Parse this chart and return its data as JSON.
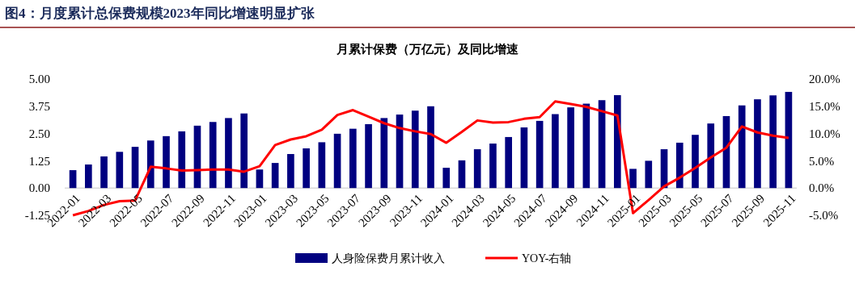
{
  "chart_data": {
    "type": "bar",
    "title": "图4：月度累计总保费规模2023年同比增速明显扩张",
    "subtitle": "月累计保费（万亿元）及同比增速",
    "categories": [
      "2022-01",
      null,
      "2022-03",
      null,
      "2022-05",
      null,
      "2022-07",
      null,
      "2022-09",
      null,
      "2022-11",
      null,
      "2023-01",
      null,
      "2023-03",
      null,
      "2023-05",
      null,
      "2023-07",
      null,
      "2023-09",
      null,
      "2023-11",
      null,
      "2024-01",
      null,
      "2024-03",
      null,
      "2024-05",
      null,
      "2024-07",
      null,
      "2024-09",
      null,
      "2024-11",
      null,
      "2025-01",
      null,
      "2025-03",
      null,
      "2025-05",
      null,
      "2025-07",
      null,
      "2025-09",
      null,
      "2025-11"
    ],
    "series": [
      {
        "name": "人身险保费月累计收入",
        "color": "#000080",
        "values": [
          0.82,
          1.08,
          1.45,
          1.66,
          1.89,
          2.18,
          2.38,
          2.6,
          2.86,
          3.03,
          3.21,
          3.42,
          0.85,
          1.15,
          1.56,
          1.82,
          2.1,
          2.49,
          2.72,
          2.93,
          3.21,
          3.37,
          3.55,
          3.75,
          0.93,
          1.27,
          1.78,
          2.04,
          2.34,
          2.78,
          3.08,
          3.39,
          3.7,
          3.87,
          4.03,
          4.26,
          0.88,
          1.25,
          1.78,
          2.08,
          2.44,
          2.96,
          3.3,
          3.79,
          4.07,
          4.25,
          4.41
        ]
      },
      {
        "name": "YOY-右轴",
        "type": "line",
        "axis": "y2",
        "color": "#ff0000",
        "values": [
          -5.0,
          -4.2,
          -3.1,
          -2.4,
          -2.3,
          3.9,
          3.6,
          3.2,
          3.3,
          3.4,
          3.4,
          3.0,
          4.0,
          7.9,
          8.9,
          9.5,
          10.7,
          13.4,
          14.3,
          13.1,
          11.9,
          11.0,
          10.4,
          9.9,
          8.3,
          10.3,
          12.4,
          12.0,
          12.1,
          12.7,
          13.0,
          15.9,
          15.4,
          14.9,
          14.1,
          13.3,
          -4.6,
          -2.2,
          0.3,
          1.9,
          3.7,
          5.6,
          7.4,
          11.3,
          10.2,
          9.6,
          9.2
        ]
      }
    ],
    "ylim": [
      -1.25,
      5
    ],
    "yticks": [
      {
        "value": -1.25,
        "label": "-1.25"
      },
      {
        "value": 0,
        "label": "0.00"
      },
      {
        "value": 1.25,
        "label": "1.25"
      },
      {
        "value": 2.5,
        "label": "2.50"
      },
      {
        "value": 3.75,
        "label": "3.75"
      },
      {
        "value": 5,
        "label": "5.00"
      }
    ],
    "y2lim": [
      -5,
      20
    ],
    "y2ticks": [
      {
        "value": -5,
        "label": "-5.0%"
      },
      {
        "value": 0,
        "label": "0.0%"
      },
      {
        "value": 5,
        "label": "5.0%"
      },
      {
        "value": 10,
        "label": "10.0%"
      },
      {
        "value": 15,
        "label": "15.0%"
      },
      {
        "value": 20,
        "label": "20.0%"
      }
    ],
    "legend": "bottom",
    "grid": false,
    "marker": "none",
    "line_style": "solid"
  }
}
